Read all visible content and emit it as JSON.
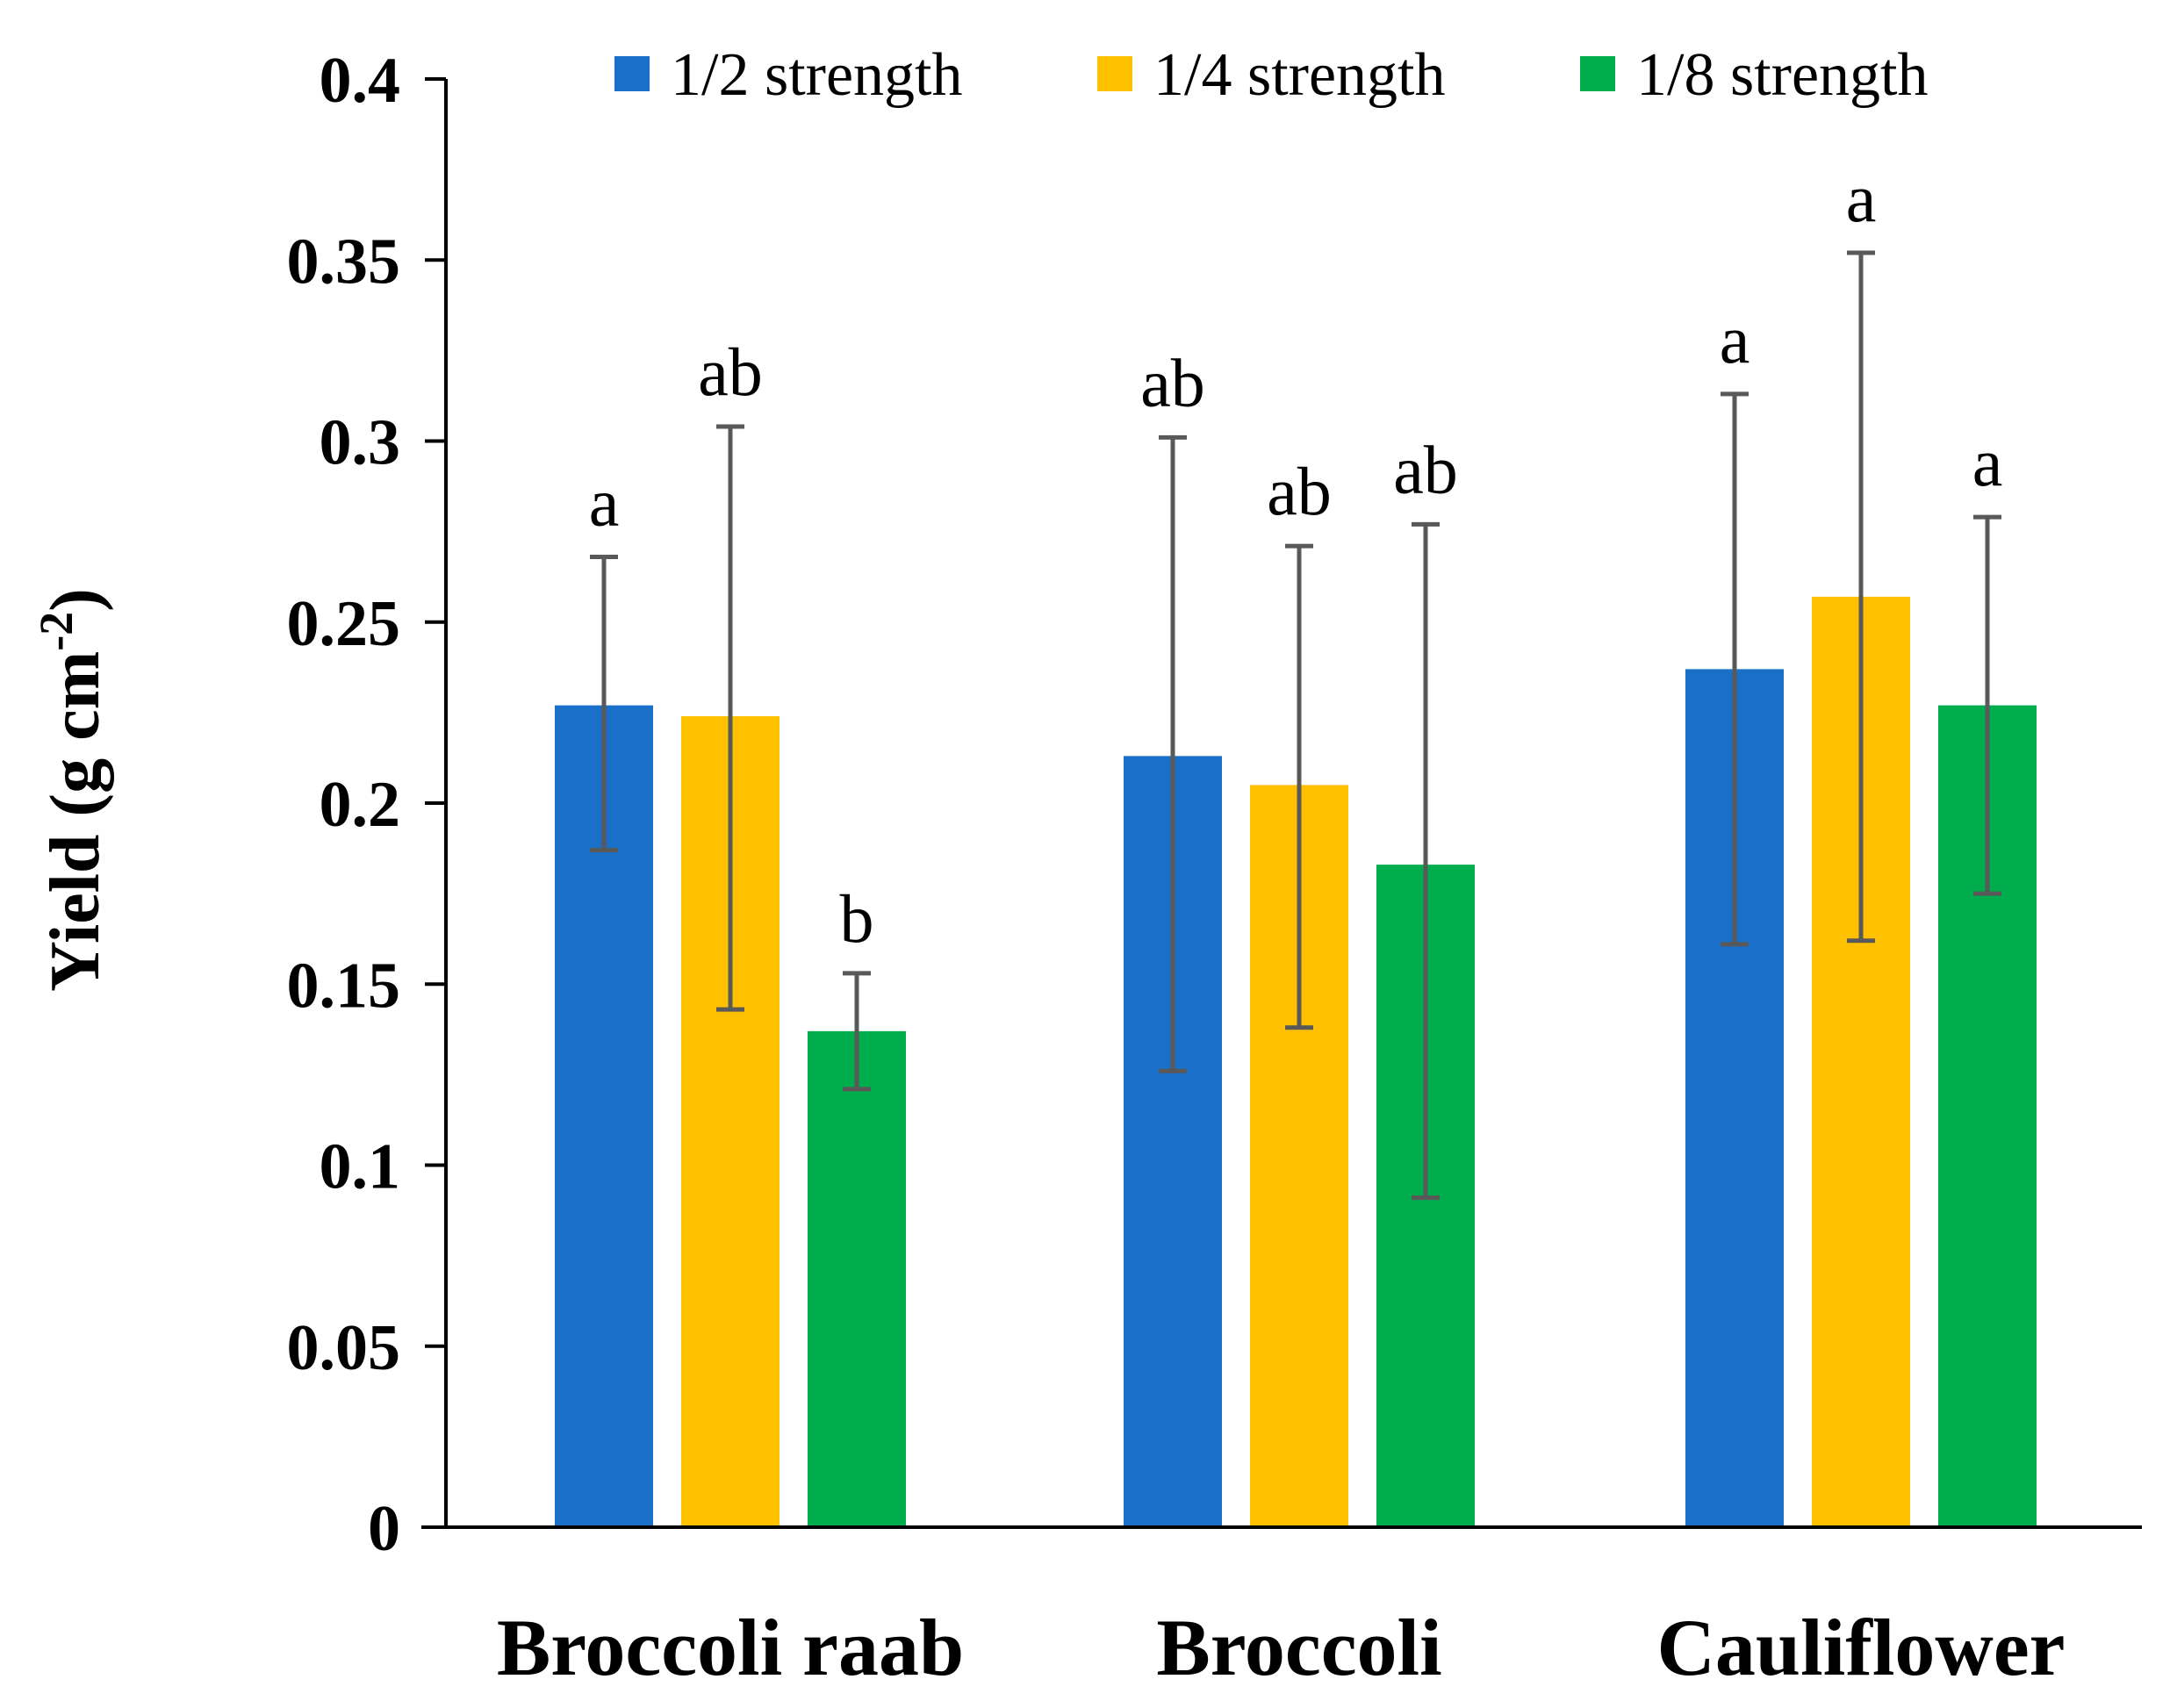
{
  "chart_data": {
    "type": "bar",
    "title": "",
    "xlabel": "",
    "ylabel": "Yield (g cm",
    "ylabel_sup": "-2",
    "ylabel_close": ")",
    "ylim": [
      0,
      0.4
    ],
    "yticks": [
      "0",
      "0.05",
      "0.1",
      "0.15",
      "0.2",
      "0.25",
      "0.3",
      "0.35",
      "0.4"
    ],
    "ytick_values": [
      0,
      0.05,
      0.1,
      0.15,
      0.2,
      0.25,
      0.3,
      0.35,
      0.4
    ],
    "grid": false,
    "legend_position": "top",
    "categories": [
      "Broccoli raab",
      "Broccoli",
      "Cauliflower"
    ],
    "series": [
      {
        "name": "1/2 strength",
        "color": "#1a70c8",
        "values": [
          0.227,
          0.213,
          0.237
        ],
        "error_low": [
          0.187,
          0.126,
          0.161
        ],
        "error_high": [
          0.268,
          0.301,
          0.313
        ],
        "letters": [
          "a",
          "ab",
          "a"
        ]
      },
      {
        "name": "1/4 strength",
        "color": "#ffc000",
        "values": [
          0.224,
          0.205,
          0.257
        ],
        "error_low": [
          0.143,
          0.138,
          0.162
        ],
        "error_high": [
          0.304,
          0.271,
          0.352
        ],
        "letters": [
          "ab",
          "ab",
          "a"
        ]
      },
      {
        "name": "1/8 strength",
        "color": "#00ad4c",
        "values": [
          0.137,
          0.183,
          0.227
        ],
        "error_low": [
          0.121,
          0.091,
          0.175
        ],
        "error_high": [
          0.153,
          0.277,
          0.279
        ],
        "letters": [
          "b",
          "ab",
          "a"
        ]
      }
    ],
    "error_bar_color": "#595959"
  }
}
